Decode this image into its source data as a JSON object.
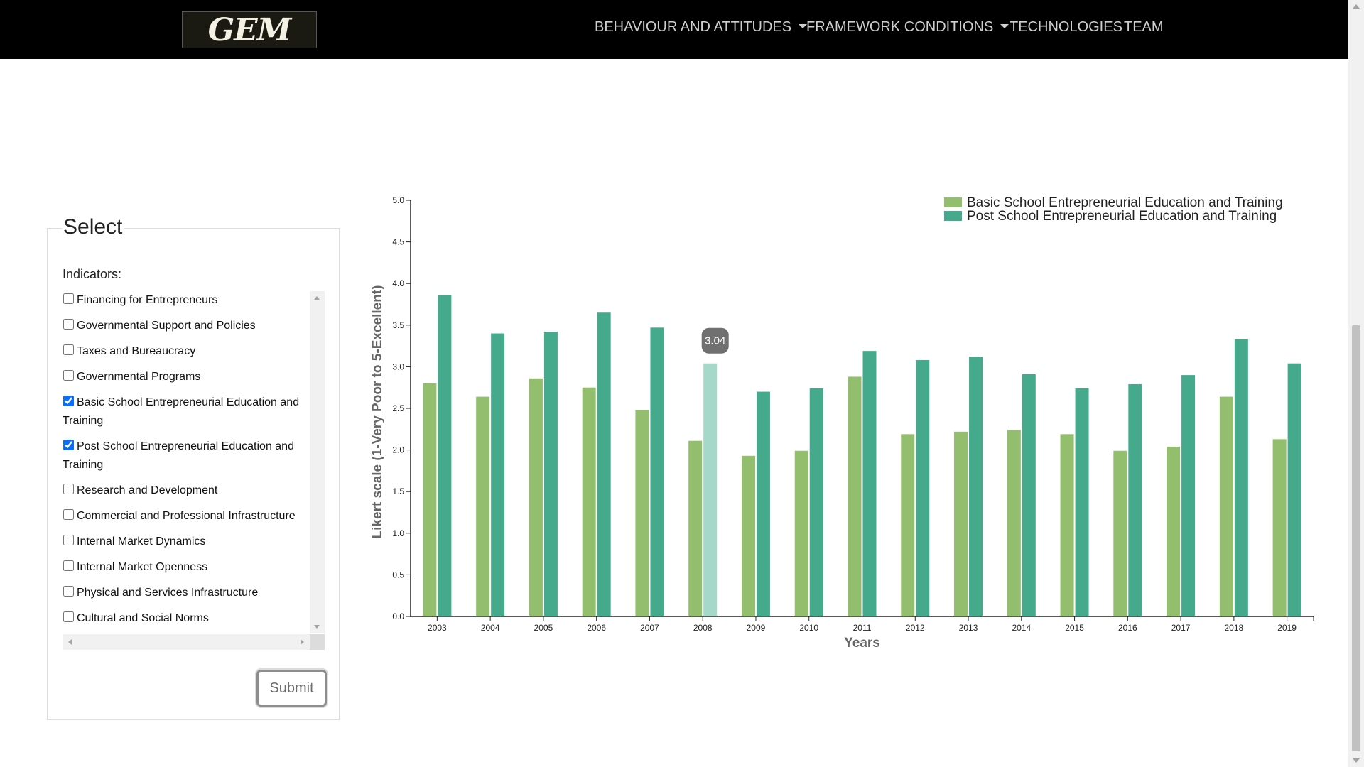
{
  "nav": {
    "logo_text": "GEM",
    "items": [
      {
        "label": "BEHAVIOUR AND ATTITUDES",
        "dropdown": true
      },
      {
        "label": "FRAMEWORK CONDITIONS",
        "dropdown": true
      },
      {
        "label": "TECHNOLOGIES",
        "dropdown": false
      },
      {
        "label": "TEAM",
        "dropdown": false
      }
    ]
  },
  "select_panel": {
    "legend": "Select",
    "indicators_label": "Indicators:",
    "indicators": [
      {
        "label": "Financing for Entrepreneurs",
        "checked": false
      },
      {
        "label": "Governmental Support and Policies",
        "checked": false
      },
      {
        "label": "Taxes and Bureaucracy",
        "checked": false
      },
      {
        "label": "Governmental Programs",
        "checked": false
      },
      {
        "label": "Basic School Entrepreneurial Education and Training",
        "checked": true
      },
      {
        "label": "Post School Entrepreneurial Education and Training",
        "checked": true
      },
      {
        "label": "Research and Development",
        "checked": false
      },
      {
        "label": "Commercial and Professional Infrastructure",
        "checked": false
      },
      {
        "label": "Internal Market Dynamics",
        "checked": false
      },
      {
        "label": "Internal Market Openness",
        "checked": false
      },
      {
        "label": "Physical and Services Infrastructure",
        "checked": false
      },
      {
        "label": "Cultural and Social Norms",
        "checked": false
      }
    ],
    "submit_label": "Submit"
  },
  "chart_data": {
    "type": "bar",
    "categories": [
      "2003",
      "2004",
      "2005",
      "2006",
      "2007",
      "2008",
      "2009",
      "2010",
      "2011",
      "2012",
      "2013",
      "2014",
      "2015",
      "2016",
      "2017",
      "2018",
      "2019"
    ],
    "series": [
      {
        "name": "Basic School Entrepreneurial Education and Training",
        "color": "#92be6e",
        "values": [
          2.8,
          2.64,
          2.86,
          2.75,
          2.48,
          2.11,
          1.93,
          1.99,
          2.88,
          2.19,
          2.22,
          2.24,
          2.19,
          1.99,
          2.04,
          2.64,
          2.13
        ]
      },
      {
        "name": "Post School Entrepreneurial Education and Training",
        "color": "#45aa8b",
        "values": [
          3.86,
          3.4,
          3.42,
          3.65,
          3.47,
          3.04,
          2.7,
          2.74,
          3.19,
          3.08,
          3.12,
          2.91,
          2.74,
          2.79,
          2.9,
          3.33,
          3.04
        ]
      }
    ],
    "ylim": [
      0,
      5
    ],
    "yticks": [
      "0.0",
      "0.5",
      "1.0",
      "1.5",
      "2.0",
      "2.5",
      "3.0",
      "3.5",
      "4.0",
      "4.5",
      "5.0"
    ],
    "xlabel": "Years",
    "ylabel": "Likert scale (1-Very Poor to 5-Excellent)",
    "legend_position": "top-right",
    "highlight": {
      "series": 1,
      "category": "2008",
      "label": "3.04",
      "color": "#a5d8c8"
    },
    "tooltip_color": "#707070"
  }
}
